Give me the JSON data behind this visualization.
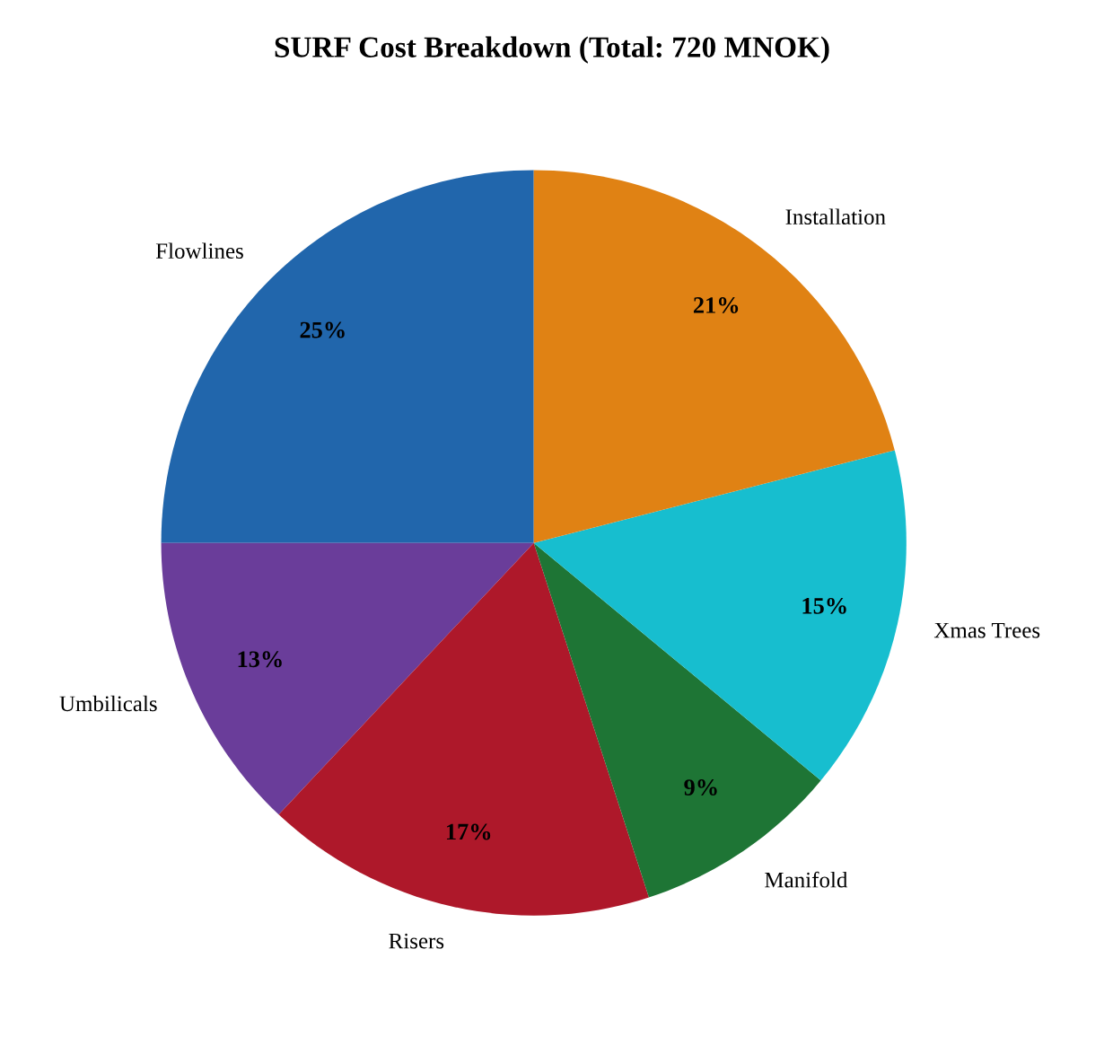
{
  "chart_data": {
    "type": "pie",
    "title": "SURF Cost Breakdown (Total: 720 MNOK)",
    "categories": [
      "Flowlines",
      "Umbilicals",
      "Risers",
      "Manifold",
      "Xmas Trees",
      "Installation"
    ],
    "values": [
      25,
      13,
      17,
      9,
      15,
      21
    ],
    "value_labels": [
      "25%",
      "13%",
      "17%",
      "9%",
      "15%",
      "21%"
    ],
    "colors": [
      "#2166ac",
      "#6a3d9a",
      "#ae182a",
      "#1e7535",
      "#17becf",
      "#e08214"
    ],
    "legend": false
  }
}
